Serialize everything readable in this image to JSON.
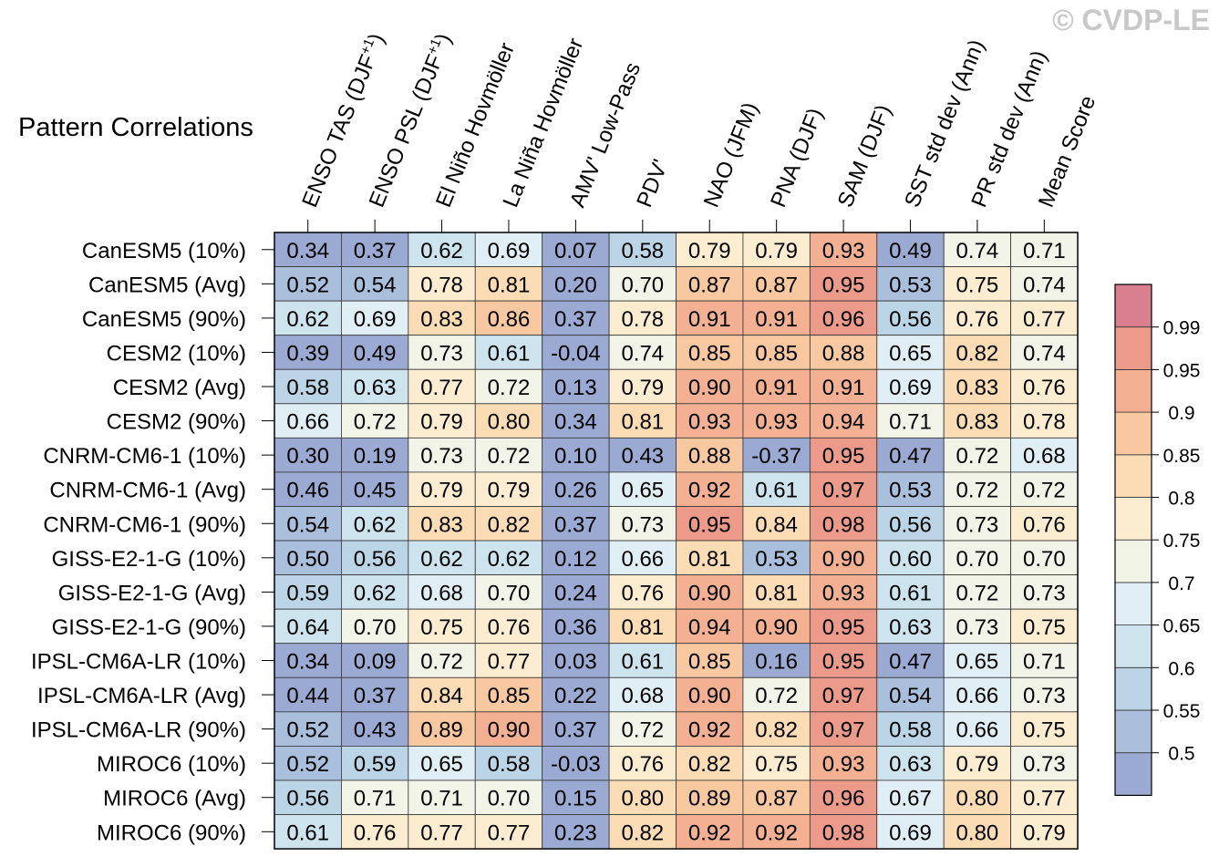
{
  "title": "Pattern Correlations",
  "watermark": "© CVDP-LE",
  "chart_data": {
    "type": "heatmap",
    "title": "Pattern Correlations",
    "columns": [
      "ENSO TAS (DJF+1)",
      "ENSO PSL (DJF+1)",
      "El Niño Hovmöller",
      "La Niña Hovmöller",
      "AMV' Low-Pass",
      "PDV'",
      "NAO (JFM)",
      "PNA (DJF)",
      "SAM (DJF)",
      "SST std dev (Ann)",
      "PR std dev (Ann)",
      "Mean Score"
    ],
    "rows": [
      "CanESM5 (10%)",
      "CanESM5 (Avg)",
      "CanESM5 (90%)",
      "CESM2 (10%)",
      "CESM2 (Avg)",
      "CESM2 (90%)",
      "CNRM-CM6-1 (10%)",
      "CNRM-CM6-1 (Avg)",
      "CNRM-CM6-1 (90%)",
      "GISS-E2-1-G (10%)",
      "GISS-E2-1-G (Avg)",
      "GISS-E2-1-G (90%)",
      "IPSL-CM6A-LR (10%)",
      "IPSL-CM6A-LR (Avg)",
      "IPSL-CM6A-LR (90%)",
      "MIROC6 (10%)",
      "MIROC6 (Avg)",
      "MIROC6 (90%)"
    ],
    "values": [
      [
        "0.34",
        "0.37",
        "0.62",
        "0.69",
        "0.07",
        "0.58",
        "0.79",
        "0.79",
        "0.93",
        "0.49",
        "0.74",
        "0.71"
      ],
      [
        "0.52",
        "0.54",
        "0.78",
        "0.81",
        "0.20",
        "0.70",
        "0.87",
        "0.87",
        "0.95",
        "0.53",
        "0.75",
        "0.74"
      ],
      [
        "0.62",
        "0.69",
        "0.83",
        "0.86",
        "0.37",
        "0.78",
        "0.91",
        "0.91",
        "0.96",
        "0.56",
        "0.76",
        "0.77"
      ],
      [
        "0.39",
        "0.49",
        "0.73",
        "0.61",
        "-0.04",
        "0.74",
        "0.85",
        "0.85",
        "0.88",
        "0.65",
        "0.82",
        "0.74"
      ],
      [
        "0.58",
        "0.63",
        "0.77",
        "0.72",
        "0.13",
        "0.79",
        "0.90",
        "0.91",
        "0.91",
        "0.69",
        "0.83",
        "0.76"
      ],
      [
        "0.66",
        "0.72",
        "0.79",
        "0.80",
        "0.34",
        "0.81",
        "0.93",
        "0.93",
        "0.94",
        "0.71",
        "0.83",
        "0.78"
      ],
      [
        "0.30",
        "0.19",
        "0.73",
        "0.72",
        "0.10",
        "0.43",
        "0.88",
        "-0.37",
        "0.95",
        "0.47",
        "0.72",
        "0.68"
      ],
      [
        "0.46",
        "0.45",
        "0.79",
        "0.79",
        "0.26",
        "0.65",
        "0.92",
        "0.61",
        "0.97",
        "0.53",
        "0.72",
        "0.72"
      ],
      [
        "0.54",
        "0.62",
        "0.83",
        "0.82",
        "0.37",
        "0.73",
        "0.95",
        "0.84",
        "0.98",
        "0.56",
        "0.73",
        "0.76"
      ],
      [
        "0.50",
        "0.56",
        "0.62",
        "0.62",
        "0.12",
        "0.66",
        "0.81",
        "0.53",
        "0.90",
        "0.60",
        "0.70",
        "0.70"
      ],
      [
        "0.59",
        "0.62",
        "0.68",
        "0.70",
        "0.24",
        "0.76",
        "0.90",
        "0.81",
        "0.93",
        "0.61",
        "0.72",
        "0.73"
      ],
      [
        "0.64",
        "0.70",
        "0.75",
        "0.76",
        "0.36",
        "0.81",
        "0.94",
        "0.90",
        "0.95",
        "0.63",
        "0.73",
        "0.75"
      ],
      [
        "0.34",
        "0.09",
        "0.72",
        "0.77",
        "0.03",
        "0.61",
        "0.85",
        "0.16",
        "0.95",
        "0.47",
        "0.65",
        "0.71"
      ],
      [
        "0.44",
        "0.37",
        "0.84",
        "0.85",
        "0.22",
        "0.68",
        "0.90",
        "0.72",
        "0.97",
        "0.54",
        "0.66",
        "0.73"
      ],
      [
        "0.52",
        "0.43",
        "0.89",
        "0.90",
        "0.37",
        "0.72",
        "0.92",
        "0.82",
        "0.97",
        "0.58",
        "0.66",
        "0.75"
      ],
      [
        "0.52",
        "0.59",
        "0.65",
        "0.58",
        "-0.03",
        "0.76",
        "0.82",
        "0.75",
        "0.93",
        "0.63",
        "0.79",
        "0.73"
      ],
      [
        "0.56",
        "0.71",
        "0.71",
        "0.70",
        "0.15",
        "0.80",
        "0.89",
        "0.87",
        "0.96",
        "0.67",
        "0.80",
        "0.77"
      ],
      [
        "0.61",
        "0.76",
        "0.77",
        "0.77",
        "0.23",
        "0.82",
        "0.92",
        "0.92",
        "0.98",
        "0.69",
        "0.80",
        "0.79"
      ]
    ],
    "colorbar": {
      "levels": [
        0.5,
        0.55,
        0.6,
        0.65,
        0.7,
        0.75,
        0.8,
        0.85,
        0.9,
        0.95,
        0.99
      ],
      "labels": [
        "0.5",
        "0.55",
        "0.6",
        "0.65",
        "0.7",
        "0.75",
        "0.8",
        "0.85",
        "0.9",
        "0.95",
        "0.99"
      ],
      "colors": [
        "#9aaad2",
        "#aabfdc",
        "#bbd4e6",
        "#cde3ee",
        "#e0eef5",
        "#f3f4e8",
        "#fcedd0",
        "#fbdcb5",
        "#f8c8a0",
        "#f3b093",
        "#ec9a89",
        "#d97f8e"
      ]
    }
  }
}
